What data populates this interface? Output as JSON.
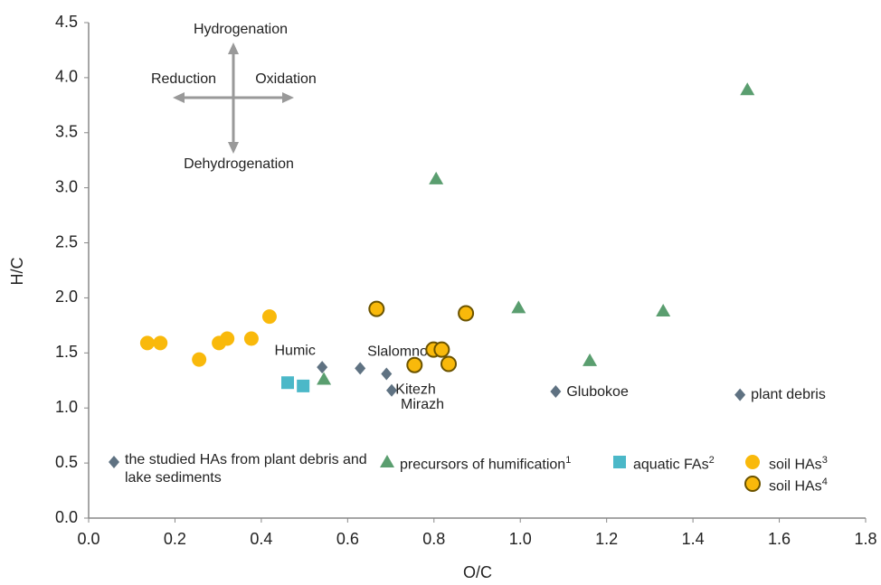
{
  "chart_data": {
    "type": "scatter",
    "xlabel": "O/C",
    "ylabel": "H/C",
    "xlim": [
      0,
      1.8
    ],
    "ylim": [
      0,
      4.5
    ],
    "xticks": [
      {
        "value": 0,
        "label": "0.0"
      },
      0.2,
      0.4,
      0.6,
      0.8,
      {
        "value": 1,
        "label": "1.0"
      },
      1.2,
      1.4,
      1.6,
      1.8
    ],
    "yticks": [
      {
        "value": 0,
        "label": "0.0"
      },
      0.5,
      {
        "value": 1,
        "label": "1.0"
      },
      1.5,
      {
        "value": 2,
        "label": "2.0"
      },
      2.5,
      {
        "value": 3,
        "label": "3.0"
      },
      3.5,
      {
        "value": 4,
        "label": "4.0"
      },
      4.5
    ],
    "grid": false,
    "annotations": [
      "Hydrogenation",
      "Reduction",
      "Oxidation",
      "Dehydrogenation"
    ],
    "series": [
      {
        "name": "the studied HAs from plant debris and lake sediments",
        "marker": "diamond",
        "color": "#5f7282",
        "x": [
          0.541,
          0.629,
          0.69,
          0.702,
          1.082,
          1.509
        ],
        "values": [
          1.37,
          1.36,
          1.31,
          1.16,
          1.15,
          1.12
        ],
        "point_labels": [
          "Humic",
          "Slalomnoe",
          "Kitezh",
          "Mirazh",
          "Glubokoe",
          "plant debris"
        ]
      },
      {
        "name": "precursors of humification",
        "superscript": "1",
        "marker": "triangle",
        "color": "#5a9e6f",
        "x": [
          1.526,
          0.805,
          0.996,
          1.331,
          1.161,
          0.545
        ],
        "values": [
          3.89,
          3.08,
          1.91,
          1.88,
          1.43,
          1.26
        ]
      },
      {
        "name": "aquatic FAs",
        "superscript": "2",
        "marker": "square",
        "color": "#4bb8c8",
        "x": [
          0.461,
          0.497
        ],
        "values": [
          1.23,
          1.2
        ]
      },
      {
        "name": "soil HAs",
        "superscript": "3",
        "marker": "circle",
        "color": "#f9b90b",
        "x": [
          0.136,
          0.166,
          0.256,
          0.302,
          0.321,
          0.377,
          0.419
        ],
        "values": [
          1.59,
          1.59,
          1.44,
          1.59,
          1.63,
          1.63,
          1.83
        ]
      },
      {
        "name": "soil HAs",
        "superscript": "4",
        "marker": "circle",
        "color": "#f9b90b",
        "edgecolor": "#6b5300",
        "x": [
          0.667,
          0.874,
          0.799,
          0.818,
          0.755,
          0.834
        ],
        "values": [
          1.9,
          1.86,
          1.53,
          1.53,
          1.39,
          1.4
        ]
      }
    ]
  }
}
